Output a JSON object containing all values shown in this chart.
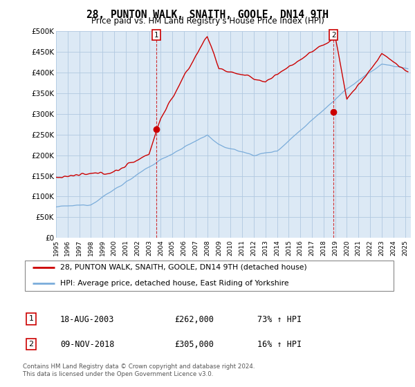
{
  "title": "28, PUNTON WALK, SNAITH, GOOLE, DN14 9TH",
  "subtitle": "Price paid vs. HM Land Registry's House Price Index (HPI)",
  "ylabel_ticks": [
    "£0",
    "£50K",
    "£100K",
    "£150K",
    "£200K",
    "£250K",
    "£300K",
    "£350K",
    "£400K",
    "£450K",
    "£500K"
  ],
  "ylim": [
    0,
    500000
  ],
  "xlim_start": 1995.0,
  "xlim_end": 2025.5,
  "sale1_x": 2003.63,
  "sale1_y": 262000,
  "sale1_label": "18-AUG-2003",
  "sale1_price": "£262,000",
  "sale1_hpi": "73% ↑ HPI",
  "sale2_x": 2018.86,
  "sale2_y": 305000,
  "sale2_label": "09-NOV-2018",
  "sale2_price": "£305,000",
  "sale2_hpi": "16% ↑ HPI",
  "legend_line1": "28, PUNTON WALK, SNAITH, GOOLE, DN14 9TH (detached house)",
  "legend_line2": "HPI: Average price, detached house, East Riding of Yorkshire",
  "footer1": "Contains HM Land Registry data © Crown copyright and database right 2024.",
  "footer2": "This data is licensed under the Open Government Licence v3.0.",
  "red_color": "#cc0000",
  "blue_color": "#7aacda",
  "bg_color": "#ffffff",
  "chart_bg": "#dce9f5",
  "grid_color": "#b0c8e0"
}
